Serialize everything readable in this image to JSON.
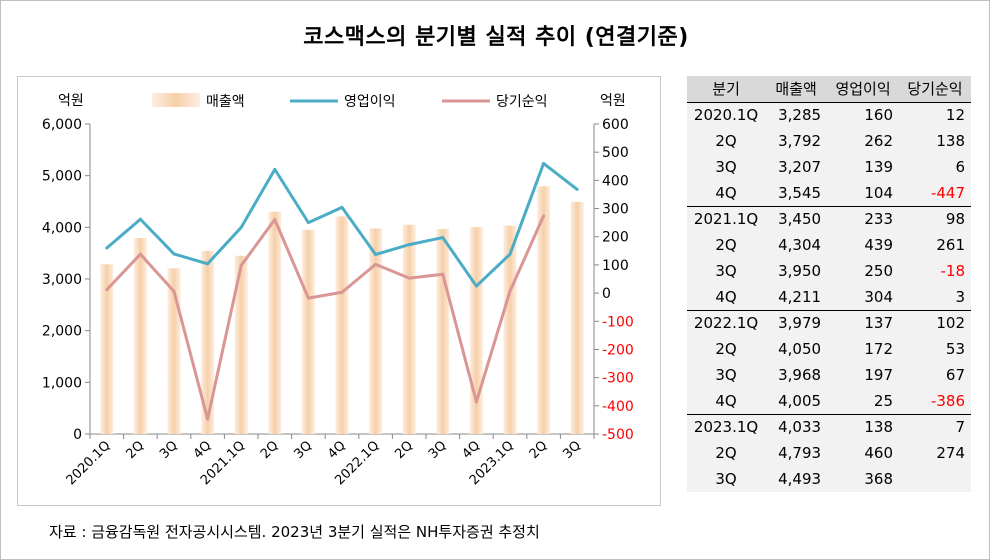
{
  "title": "코스맥스의 분기별 실적 추이 (연결기준)",
  "source": "자료 : 금융감독원 전자공시시스템. 2023년 3분기 실적은 NH투자증권 추정치",
  "colors": {
    "bar": "#f6cfa8",
    "operating": "#4bacc6",
    "net": "#d99694",
    "negative_tick": "#ff0000"
  },
  "chart_data": {
    "type": "bar",
    "title": "",
    "left_unit": "억원",
    "right_unit": "억원",
    "categories": [
      "2020.1Q",
      "2Q",
      "3Q",
      "4Q",
      "2021.1Q",
      "2Q",
      "3Q",
      "4Q",
      "2022.1Q",
      "2Q",
      "3Q",
      "4Q",
      "2023.1Q",
      "2Q",
      "3Q"
    ],
    "left_ticks": [
      "0",
      "1,000",
      "2,000",
      "3,000",
      "4,000",
      "5,000",
      "6,000"
    ],
    "right_ticks": [
      "-500",
      "-400",
      "-300",
      "-200",
      "-100",
      "0",
      "100",
      "200",
      "300",
      "400",
      "500",
      "600"
    ],
    "ylim_left": [
      0,
      6000
    ],
    "ylim_right": [
      -500,
      600
    ],
    "grid": false,
    "legend": "top",
    "series": [
      {
        "name": "매출액",
        "kind": "bar",
        "axis": "left",
        "values": [
          3285,
          3792,
          3207,
          3545,
          3450,
          4304,
          3950,
          4211,
          3979,
          4050,
          3968,
          4005,
          4033,
          4793,
          4493
        ]
      },
      {
        "name": "영업이익",
        "kind": "line",
        "axis": "right",
        "values": [
          160,
          262,
          139,
          104,
          233,
          439,
          250,
          304,
          137,
          172,
          197,
          25,
          138,
          460,
          368
        ]
      },
      {
        "name": "당기순익",
        "kind": "line",
        "axis": "right",
        "values": [
          12,
          138,
          6,
          -447,
          98,
          261,
          -18,
          3,
          102,
          53,
          67,
          -386,
          7,
          274,
          null
        ]
      }
    ]
  },
  "table": {
    "headers": [
      "분기",
      "매출액",
      "영업이익",
      "당기순익"
    ],
    "rows": [
      {
        "q": "2020.1Q",
        "sales": "3,285",
        "op": "160",
        "net": "12",
        "neg": false,
        "sep": false
      },
      {
        "q": "2Q",
        "sales": "3,792",
        "op": "262",
        "net": "138",
        "neg": false,
        "sep": false
      },
      {
        "q": "3Q",
        "sales": "3,207",
        "op": "139",
        "net": "6",
        "neg": false,
        "sep": false
      },
      {
        "q": "4Q",
        "sales": "3,545",
        "op": "104",
        "net": "-447",
        "neg": true,
        "sep": false
      },
      {
        "q": "2021.1Q",
        "sales": "3,450",
        "op": "233",
        "net": "98",
        "neg": false,
        "sep": true
      },
      {
        "q": "2Q",
        "sales": "4,304",
        "op": "439",
        "net": "261",
        "neg": false,
        "sep": false
      },
      {
        "q": "3Q",
        "sales": "3,950",
        "op": "250",
        "net": "-18",
        "neg": true,
        "sep": false
      },
      {
        "q": "4Q",
        "sales": "4,211",
        "op": "304",
        "net": "3",
        "neg": false,
        "sep": false
      },
      {
        "q": "2022.1Q",
        "sales": "3,979",
        "op": "137",
        "net": "102",
        "neg": false,
        "sep": true
      },
      {
        "q": "2Q",
        "sales": "4,050",
        "op": "172",
        "net": "53",
        "neg": false,
        "sep": false
      },
      {
        "q": "3Q",
        "sales": "3,968",
        "op": "197",
        "net": "67",
        "neg": false,
        "sep": false
      },
      {
        "q": "4Q",
        "sales": "4,005",
        "op": "25",
        "net": "-386",
        "neg": true,
        "sep": false
      },
      {
        "q": "2023.1Q",
        "sales": "4,033",
        "op": "138",
        "net": "7",
        "neg": false,
        "sep": true
      },
      {
        "q": "2Q",
        "sales": "4,793",
        "op": "460",
        "net": "274",
        "neg": false,
        "sep": false
      },
      {
        "q": "3Q",
        "sales": "4,493",
        "op": "368",
        "net": "",
        "neg": false,
        "sep": false
      }
    ]
  }
}
